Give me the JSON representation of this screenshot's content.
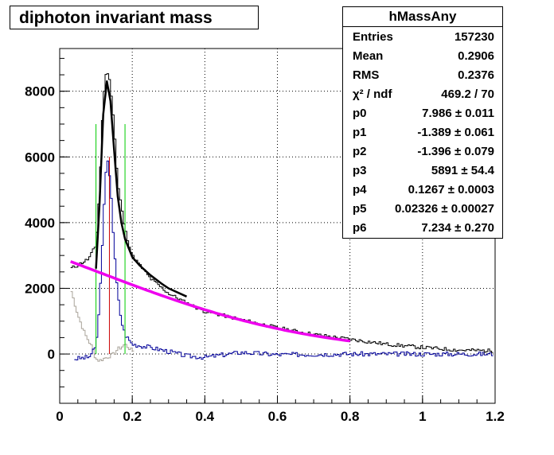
{
  "chart_data": {
    "type": "histogram",
    "title": "diphoton invariant mass",
    "xlim": [
      0,
      1.2
    ],
    "ylim": [
      -1500,
      9300
    ],
    "grid": true,
    "x_ticks": [
      "0",
      "0.2",
      "0.4",
      "0.6",
      "0.8",
      "1",
      "1.2"
    ],
    "y_ticks": [
      "0",
      "2000",
      "4000",
      "6000",
      "8000"
    ],
    "stats": {
      "name": "hMassAny",
      "rows": [
        {
          "key": "Entries",
          "value": "157230"
        },
        {
          "key": "Mean",
          "value": "0.2906"
        },
        {
          "key": "RMS",
          "value": "0.2376"
        },
        {
          "key": "χ² / ndf",
          "value": "469.2 / 70"
        },
        {
          "key": "p0",
          "value": "7.986 ± 0.011"
        },
        {
          "key": "p1",
          "value": "-1.389 ± 0.061"
        },
        {
          "key": "p2",
          "value": "-1.396 ± 0.079"
        },
        {
          "key": "p3",
          "value": "5891 ± 54.4"
        },
        {
          "key": "p4",
          "value": "0.1267 ± 0.0003"
        },
        {
          "key": "p5",
          "value": "0.02326 ± 0.00027"
        },
        {
          "key": "p6",
          "value": "7.234 ± 0.270"
        }
      ]
    },
    "total_hist_profile": {
      "x": [
        0.03,
        0.05,
        0.08,
        0.1,
        0.11,
        0.12,
        0.13,
        0.14,
        0.15,
        0.16,
        0.18,
        0.2,
        0.25,
        0.3,
        0.35,
        0.4,
        0.5,
        0.6,
        0.7,
        0.8,
        0.9,
        1.0,
        1.1,
        1.19
      ],
      "y": [
        2600,
        2700,
        2900,
        3300,
        5000,
        7800,
        8700,
        8200,
        7000,
        5200,
        3800,
        3000,
        2300,
        1850,
        1550,
        1300,
        1050,
        800,
        600,
        450,
        300,
        200,
        120,
        100
      ]
    },
    "fit_total": {
      "x": [
        0.1,
        0.11,
        0.12,
        0.13,
        0.14,
        0.15,
        0.16,
        0.17,
        0.18,
        0.2,
        0.22,
        0.25,
        0.28,
        0.3,
        0.35
      ],
      "y": [
        2600,
        4600,
        7300,
        8300,
        7700,
        6200,
        4800,
        4000,
        3500,
        2950,
        2700,
        2400,
        2150,
        2000,
        1750
      ]
    },
    "fit_background": {
      "x_range": [
        0.03,
        0.8
      ],
      "p0": 7.986,
      "p1": -1.389,
      "p2": -1.396
    },
    "signal_hist_profile": {
      "x": [
        0.04,
        0.08,
        0.1,
        0.11,
        0.12,
        0.13,
        0.14,
        0.15,
        0.16,
        0.17,
        0.18,
        0.2,
        0.25,
        0.3,
        0.35,
        0.4,
        0.5,
        0.6,
        0.8,
        1.0,
        1.19
      ],
      "y": [
        -150,
        -100,
        200,
        1500,
        4000,
        6000,
        5300,
        3200,
        1800,
        1000,
        600,
        300,
        200,
        80,
        -60,
        -100,
        50,
        -20,
        0,
        0,
        0
      ]
    },
    "gray_hist_profile": {
      "x": [
        0.03,
        0.05,
        0.07,
        0.09,
        0.1,
        0.11,
        0.12,
        0.13,
        0.14,
        0.15,
        0.16,
        0.17,
        0.18,
        0.2
      ],
      "y": [
        2000,
        1200,
        600,
        200,
        -150,
        -200,
        -150,
        -100,
        -50,
        0,
        150,
        200,
        300,
        100
      ]
    },
    "vertical_lines": [
      {
        "x": 0.1,
        "ytop": 7000,
        "color": "#00cc00"
      },
      {
        "x": 0.137,
        "ytop": 6000,
        "color": "#cc0000"
      },
      {
        "x": 0.18,
        "ytop": 7000,
        "color": "#00cc00"
      }
    ],
    "colors": {
      "total": "#000000",
      "signal": "#000099",
      "gray": "#aaa49a",
      "background_fit": "#ee00ee",
      "fit": "#000000"
    }
  }
}
